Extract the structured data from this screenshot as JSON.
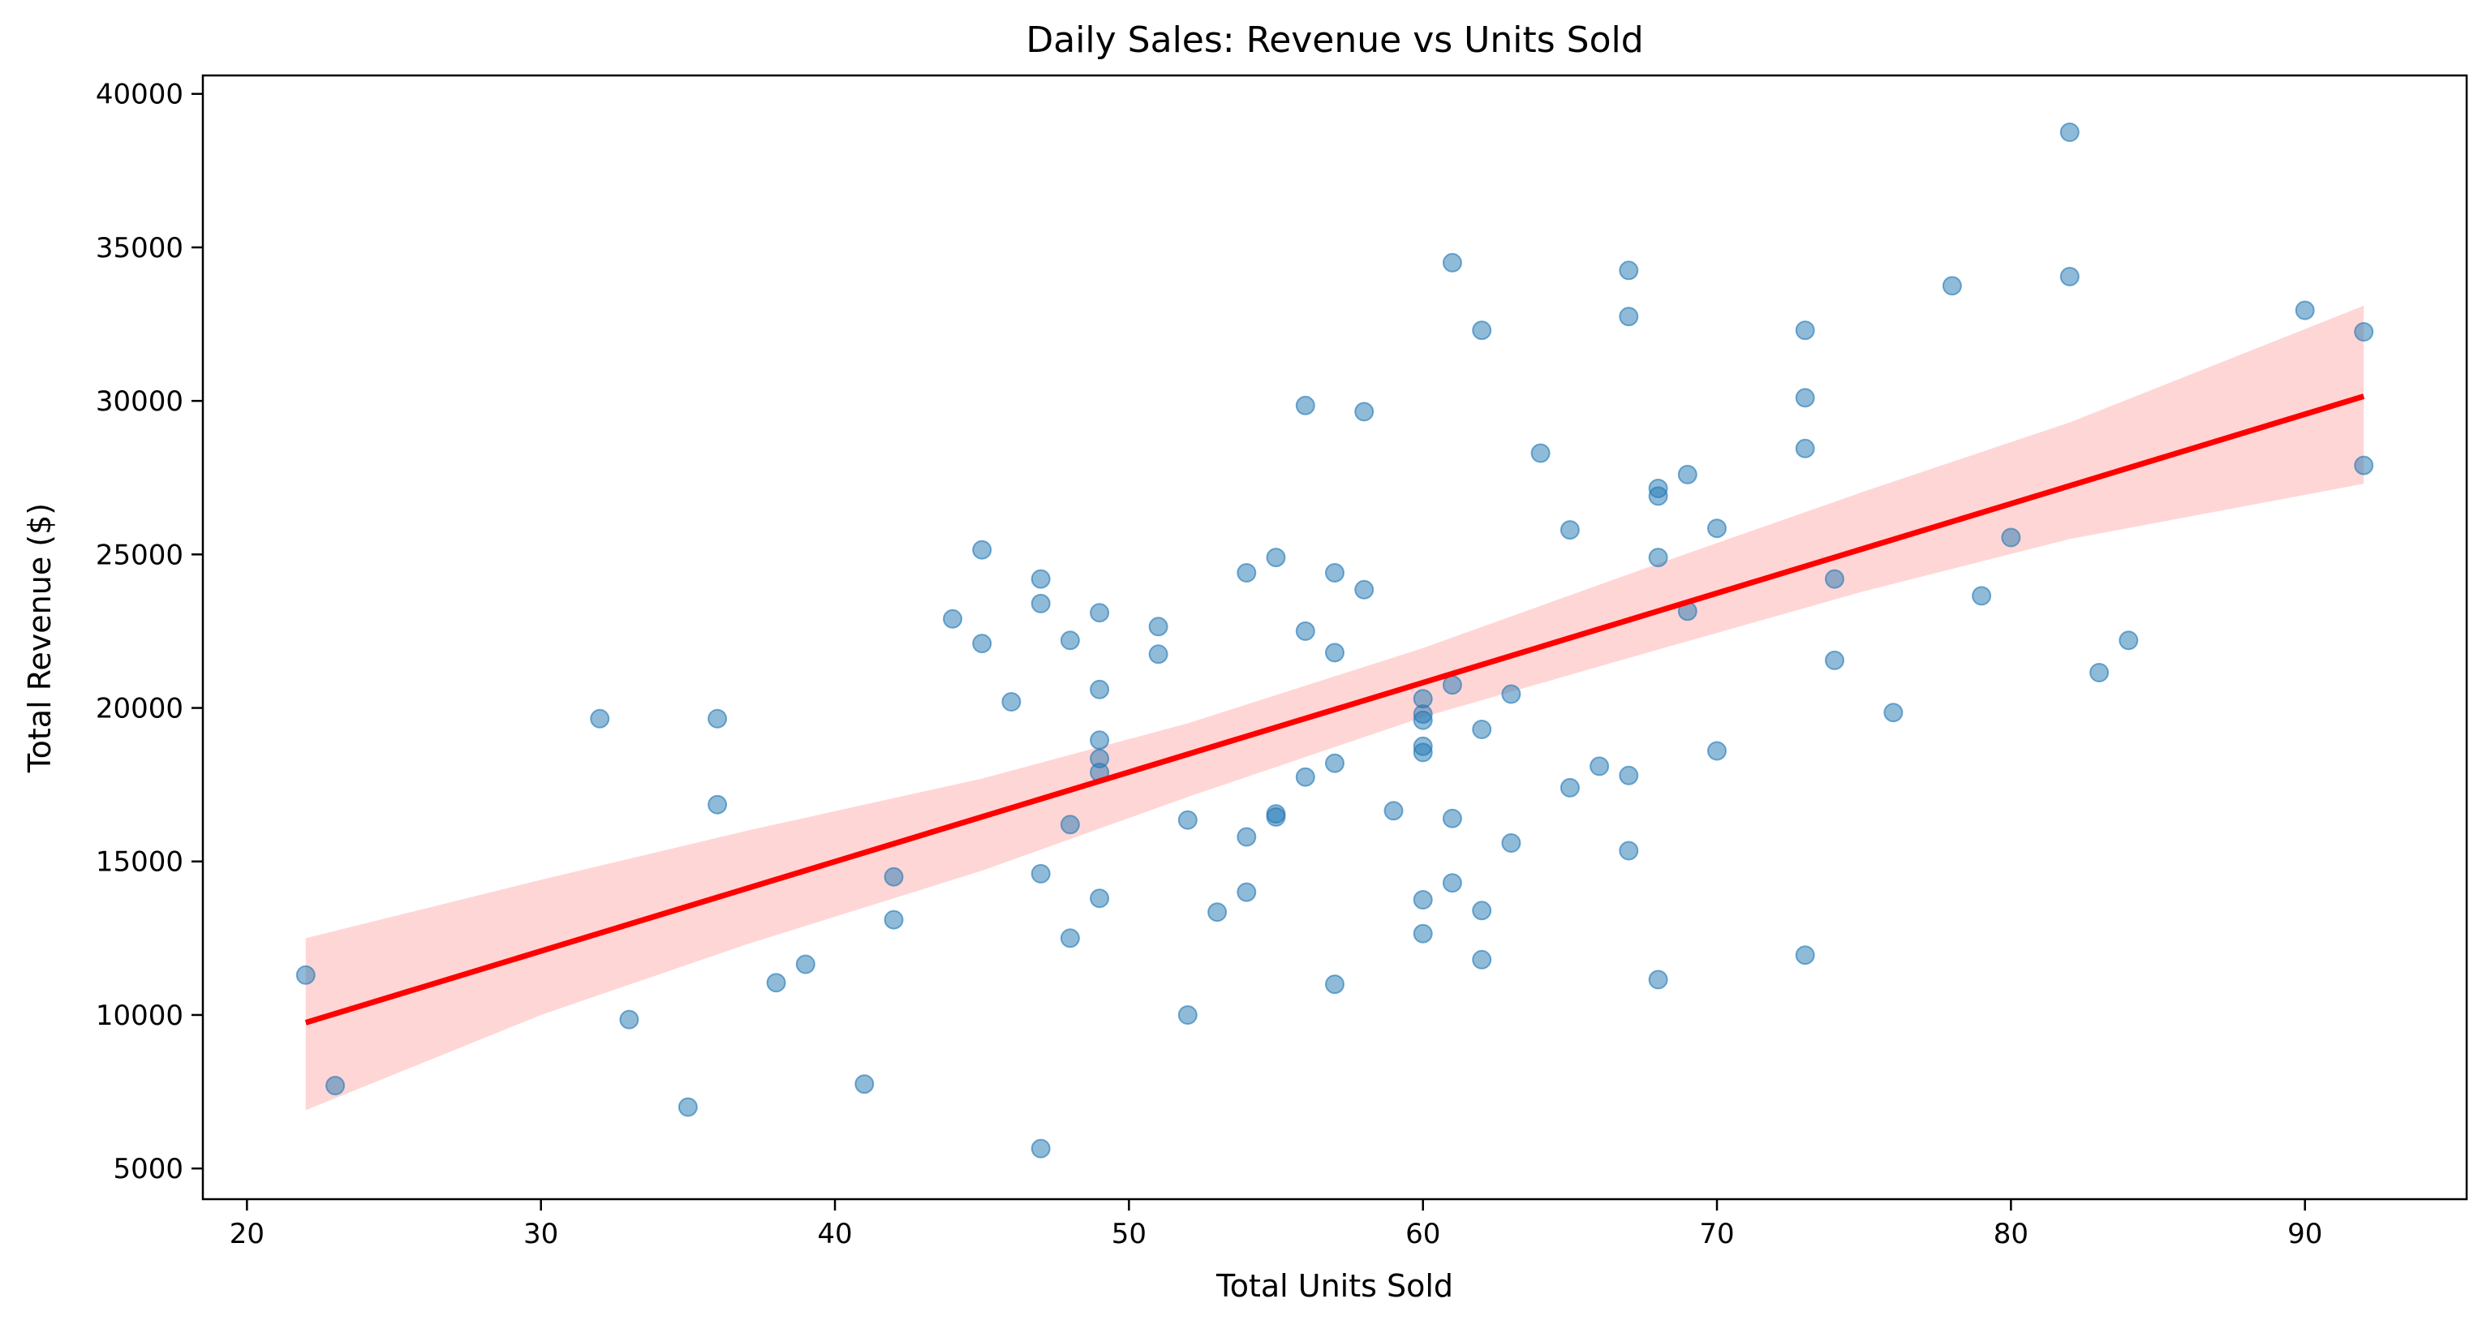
{
  "chart_data": {
    "type": "scatter",
    "title": "Daily Sales: Revenue vs Units Sold",
    "xlabel": "Total Units Sold",
    "ylabel": "Total Revenue ($)",
    "xlim": [
      18.5,
      95.5
    ],
    "ylim": [
      4000,
      40600
    ],
    "xticks": [
      20,
      30,
      40,
      50,
      60,
      70,
      80,
      90
    ],
    "yticks": [
      5000,
      10000,
      15000,
      20000,
      25000,
      30000,
      35000,
      40000
    ],
    "grid": false,
    "legend": "none",
    "colors": {
      "points": "#1f77b4",
      "trend": "#ff0000",
      "band": "#ffcccc"
    },
    "points": [
      [
        22,
        11300
      ],
      [
        23,
        7700
      ],
      [
        32,
        19650
      ],
      [
        33,
        9850
      ],
      [
        35,
        7000
      ],
      [
        36,
        19650
      ],
      [
        36,
        16850
      ],
      [
        38,
        11050
      ],
      [
        39,
        11650
      ],
      [
        41,
        7750
      ],
      [
        42,
        14500
      ],
      [
        42,
        13100
      ],
      [
        44,
        22900
      ],
      [
        45,
        25150
      ],
      [
        45,
        22100
      ],
      [
        46,
        20200
      ],
      [
        47,
        24200
      ],
      [
        47,
        23400
      ],
      [
        47,
        14600
      ],
      [
        47,
        5650
      ],
      [
        48,
        22200
      ],
      [
        48,
        16200
      ],
      [
        48,
        12500
      ],
      [
        49,
        23100
      ],
      [
        49,
        20600
      ],
      [
        49,
        18950
      ],
      [
        49,
        18350
      ],
      [
        49,
        17900
      ],
      [
        49,
        13800
      ],
      [
        51,
        22650
      ],
      [
        51,
        21750
      ],
      [
        52,
        16350
      ],
      [
        52,
        10000
      ],
      [
        53,
        13350
      ],
      [
        54,
        24400
      ],
      [
        54,
        15800
      ],
      [
        54,
        14000
      ],
      [
        55,
        24900
      ],
      [
        55,
        16550
      ],
      [
        55,
        16450
      ],
      [
        56,
        29850
      ],
      [
        56,
        22500
      ],
      [
        56,
        17750
      ],
      [
        57,
        24400
      ],
      [
        57,
        21800
      ],
      [
        57,
        18200
      ],
      [
        57,
        11000
      ],
      [
        58,
        29650
      ],
      [
        58,
        23850
      ],
      [
        59,
        16650
      ],
      [
        60,
        20300
      ],
      [
        60,
        19800
      ],
      [
        60,
        19600
      ],
      [
        60,
        18750
      ],
      [
        60,
        18550
      ],
      [
        60,
        13750
      ],
      [
        60,
        12650
      ],
      [
        61,
        34500
      ],
      [
        61,
        20750
      ],
      [
        61,
        16400
      ],
      [
        61,
        14300
      ],
      [
        62,
        32300
      ],
      [
        62,
        19300
      ],
      [
        62,
        13400
      ],
      [
        62,
        11800
      ],
      [
        63,
        20450
      ],
      [
        63,
        15600
      ],
      [
        64,
        28300
      ],
      [
        65,
        25800
      ],
      [
        65,
        17400
      ],
      [
        66,
        18100
      ],
      [
        67,
        34250
      ],
      [
        67,
        32750
      ],
      [
        67,
        17800
      ],
      [
        67,
        15350
      ],
      [
        68,
        27150
      ],
      [
        68,
        26900
      ],
      [
        68,
        24900
      ],
      [
        68,
        11150
      ],
      [
        69,
        27600
      ],
      [
        69,
        23150
      ],
      [
        70,
        25850
      ],
      [
        70,
        18600
      ],
      [
        73,
        32300
      ],
      [
        73,
        30100
      ],
      [
        73,
        28450
      ],
      [
        73,
        11950
      ],
      [
        74,
        24200
      ],
      [
        74,
        21550
      ],
      [
        76,
        19850
      ],
      [
        78,
        33750
      ],
      [
        79,
        23650
      ],
      [
        80,
        25550
      ],
      [
        82,
        38750
      ],
      [
        82,
        34050
      ],
      [
        83,
        21150
      ],
      [
        84,
        22200
      ],
      [
        90,
        32950
      ],
      [
        92,
        32250
      ],
      [
        92,
        27900
      ]
    ],
    "trendline": {
      "x": [
        22,
        92
      ],
      "y": [
        9750,
        30150
      ]
    },
    "confidence_band": {
      "x": [
        22,
        30,
        37,
        45,
        52,
        60,
        68,
        75,
        82,
        92
      ],
      "upper": [
        12500,
        14400,
        16000,
        17700,
        19500,
        21950,
        24700,
        27050,
        29300,
        33100
      ],
      "lower": [
        6900,
        10000,
        12300,
        14700,
        17100,
        19700,
        21900,
        23800,
        25500,
        27300
      ]
    }
  }
}
